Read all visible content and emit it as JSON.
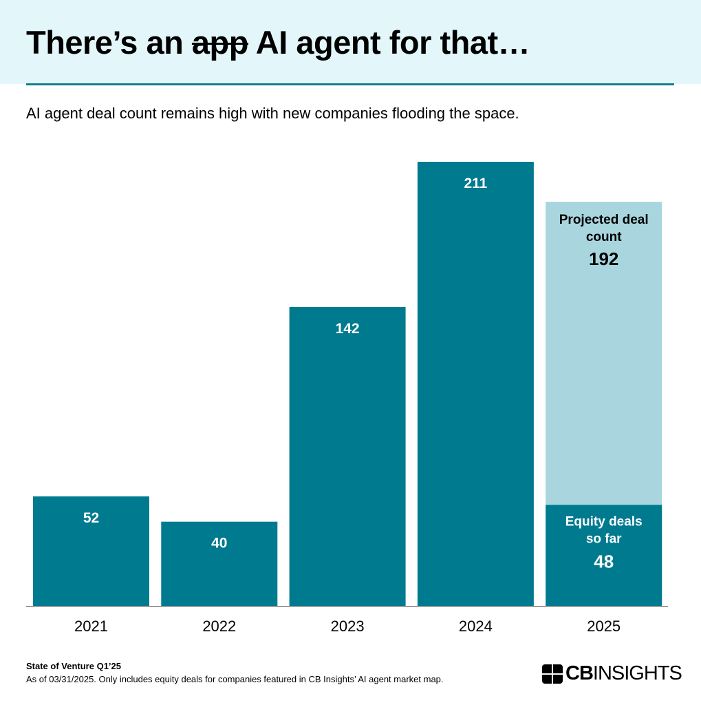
{
  "header": {
    "title_before": "There’s an ",
    "title_struck": "app",
    "title_after": " AI agent for that…",
    "subtitle": "AI agent deal count remains high with new companies flooding the space."
  },
  "colors": {
    "header_bg": "#e3f6fa",
    "bar": "#007a8f",
    "projected": "#a8d5de",
    "rule": "#117f8f"
  },
  "chart_data": {
    "type": "bar",
    "categories": [
      "2021",
      "2022",
      "2023",
      "2024",
      "2025"
    ],
    "values": [
      52,
      40,
      142,
      211,
      48
    ],
    "projected": {
      "category": "2025",
      "value": 192,
      "label": "Projected deal count",
      "label_lines": [
        "Projected deal",
        "count"
      ]
    },
    "so_far": {
      "category": "2025",
      "value": 48,
      "label": "Equity deals so far",
      "label_lines": [
        "Equity deals",
        "so far"
      ]
    },
    "title": "",
    "xlabel": "",
    "ylabel": "",
    "ylim": [
      0,
      211
    ],
    "grid": false,
    "legend": "none"
  },
  "footer": {
    "source": "State of Venture Q1’25",
    "note": "As of 03/31/2025. Only includes equity deals for companies featured in CB Insights’ AI agent market map.",
    "logo_bold": "CB",
    "logo_light": "INSIGHTS"
  }
}
